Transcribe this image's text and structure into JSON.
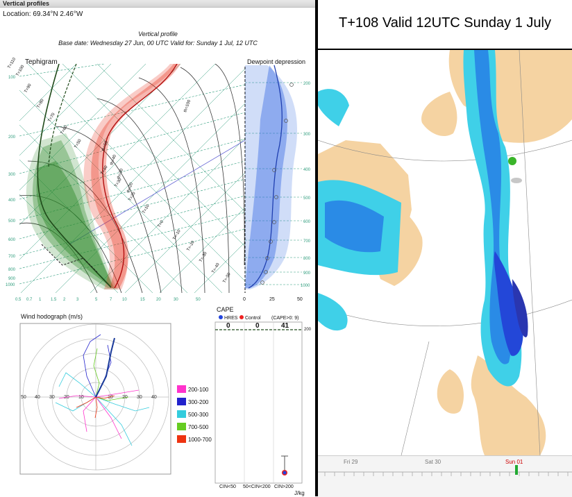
{
  "window": {
    "title": "Vertical profiles",
    "close_glyph": "✕"
  },
  "location": "Location: 69.34°N 2.46°W",
  "profile": {
    "title": "Vertical profile",
    "subtitle": "Base date: Wednesday 27 Jun, 00 UTC Valid for: Sunday 1 Jul, 12 UTC"
  },
  "tephigram": {
    "label": "Tephigram",
    "pressure_labels": [
      "100",
      "200",
      "300",
      "400",
      "500",
      "600",
      "700",
      "800",
      "900",
      "1000"
    ],
    "mixing_labels": [
      "0.5",
      "0.7",
      "1",
      "1.5",
      "2",
      "3",
      "5",
      "7",
      "10",
      "15",
      "20",
      "30",
      "50"
    ],
    "temp_labels": [
      "T=110",
      "T=100",
      "T=90",
      "T=80",
      "T=70",
      "T=60",
      "T=50",
      "T=40",
      "T=30",
      "T=20",
      "T=10",
      "T=0",
      "T=-10",
      "T=-20",
      "T=-30",
      "T=-40",
      "T=-50"
    ],
    "theta_labels": [
      "th=20",
      "th=30",
      "th=40",
      "th=50",
      "th=100"
    ],
    "colors": {
      "temperature": "#e8331f",
      "dewpoint": "#2f8a2a",
      "grid": "#2b9b7a",
      "adiabat": "#222222"
    }
  },
  "dewpoint_depression": {
    "label": "Dewpoint depression",
    "x_labels": [
      "0",
      "25",
      "50"
    ],
    "pressure_labels": [
      "200",
      "300",
      "400",
      "500",
      "600",
      "700",
      "800",
      "900",
      "1000"
    ],
    "color": "#2b62e0"
  },
  "hodograph": {
    "label": "Wind hodograph (m/s)",
    "ring_labels": [
      "50",
      "40",
      "30",
      "20",
      "10",
      "10",
      "20",
      "30",
      "40"
    ],
    "legend": [
      {
        "label": "200-100",
        "color": "#ff33cc"
      },
      {
        "label": "300-200",
        "color": "#2222cc"
      },
      {
        "label": "500-300",
        "color": "#33ccdd"
      },
      {
        "label": "700-500",
        "color": "#66cc22"
      },
      {
        "label": "1000-700",
        "color": "#ee3311"
      }
    ]
  },
  "cape": {
    "label": "CAPE",
    "legend_hres": "HRES",
    "legend_control": "Control",
    "legend_cape": "(CAPE>0: 9)",
    "values": [
      "0",
      "0",
      "41"
    ],
    "top_axis": "200",
    "cin_labels": [
      "CIN<50",
      "50<CIN<200",
      "CIN>200"
    ],
    "unit": "J/kg",
    "colors": {
      "hres": "#2244dd",
      "control": "#ee2222"
    }
  },
  "map": {
    "title": "T+108 Valid 12UTC Sunday 1 July",
    "colors": {
      "sea": "#ffffff",
      "land": "#f5d3a2",
      "light": "#3fd0e8",
      "mid": "#2a8be6",
      "dark": "#2347d8",
      "deep": "#2a36b0",
      "marker": "#3ab52a"
    }
  },
  "timeline": {
    "labels": [
      "Fri 29",
      "Sat 30",
      "Sun 01"
    ],
    "colors": {
      "current": "#cc0000",
      "marker": "#22aa33"
    }
  }
}
